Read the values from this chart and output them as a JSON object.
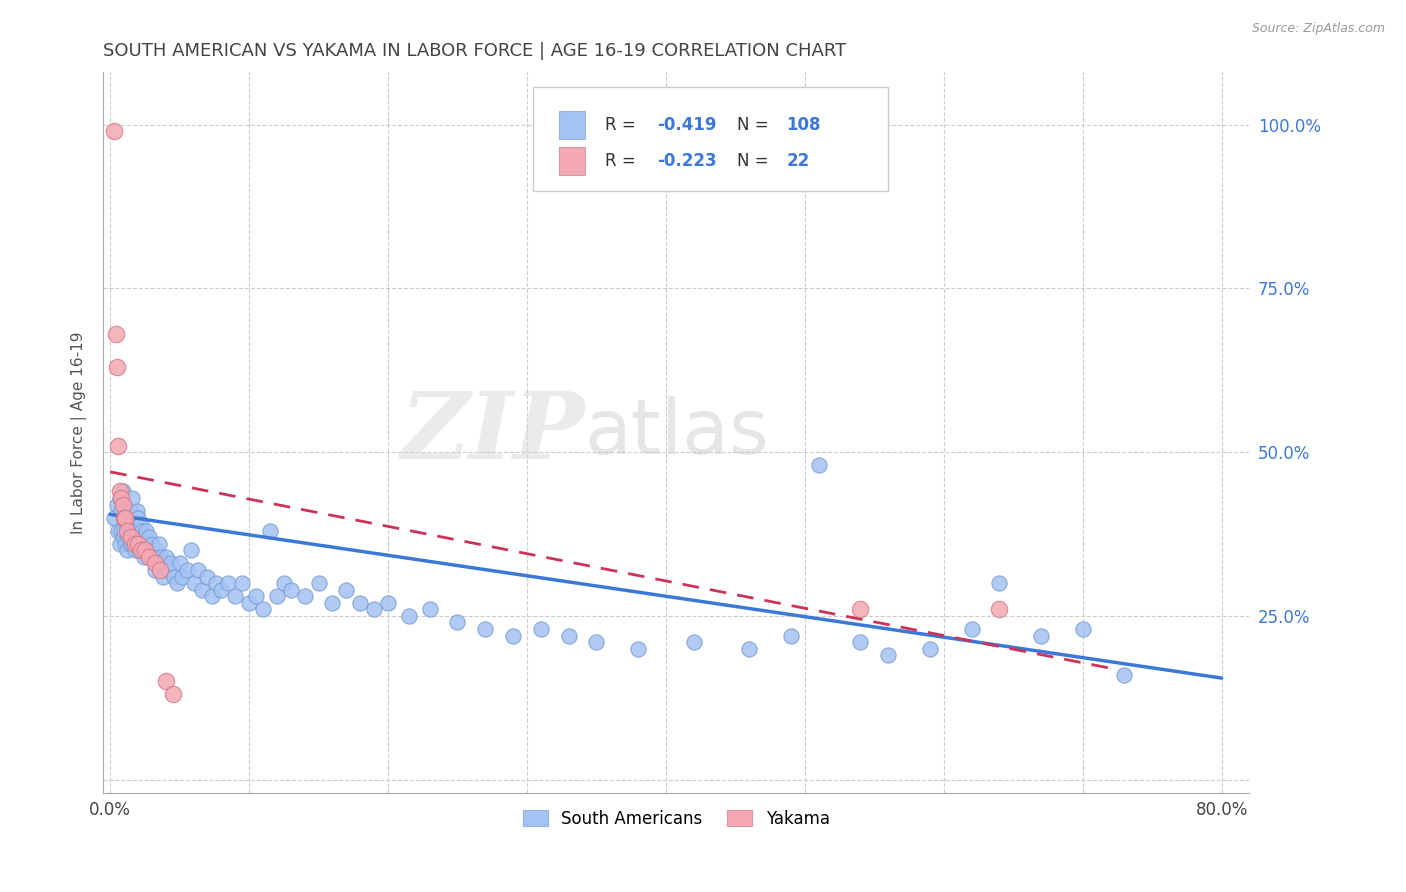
{
  "title": "SOUTH AMERICAN VS YAKAMA IN LABOR FORCE | AGE 16-19 CORRELATION CHART",
  "source": "Source: ZipAtlas.com",
  "ylabel": "In Labor Force | Age 16-19",
  "watermark_zip": "ZIP",
  "watermark_atlas": "atlas",
  "xlim": [
    -0.005,
    0.82
  ],
  "ylim": [
    -0.02,
    1.08
  ],
  "x_ticks": [
    0.0,
    0.1,
    0.2,
    0.3,
    0.4,
    0.5,
    0.6,
    0.7,
    0.8
  ],
  "x_tick_labels": [
    "0.0%",
    "",
    "",
    "",
    "",
    "",
    "",
    "",
    "80.0%"
  ],
  "y_ticks_right": [
    0.0,
    0.25,
    0.5,
    0.75,
    1.0
  ],
  "y_tick_labels_right": [
    "",
    "25.0%",
    "50.0%",
    "75.0%",
    "100.0%"
  ],
  "blue_color": "#a4c2f4",
  "pink_color": "#f4a8b2",
  "blue_line_color": "#3c78d8",
  "pink_line_color": "#cc3356",
  "blue_R": "-0.419",
  "blue_N": "108",
  "pink_R": "-0.223",
  "pink_N": "22",
  "legend_label_blue": "South Americans",
  "legend_label_pink": "Yakama",
  "background_color": "#ffffff",
  "grid_color": "#cccccc",
  "title_color": "#444444",
  "axis_label_color": "#555555",
  "right_tick_color": "#3c78d8",
  "legend_text_color": "#3c78d8",
  "blue_scatter_x": [
    0.003,
    0.005,
    0.006,
    0.007,
    0.007,
    0.008,
    0.008,
    0.009,
    0.009,
    0.01,
    0.01,
    0.011,
    0.011,
    0.012,
    0.012,
    0.012,
    0.013,
    0.013,
    0.014,
    0.014,
    0.015,
    0.015,
    0.016,
    0.016,
    0.017,
    0.017,
    0.018,
    0.018,
    0.019,
    0.019,
    0.02,
    0.02,
    0.021,
    0.021,
    0.022,
    0.022,
    0.023,
    0.023,
    0.024,
    0.024,
    0.025,
    0.026,
    0.027,
    0.028,
    0.029,
    0.03,
    0.031,
    0.032,
    0.033,
    0.034,
    0.035,
    0.036,
    0.037,
    0.038,
    0.04,
    0.042,
    0.044,
    0.046,
    0.048,
    0.05,
    0.052,
    0.055,
    0.058,
    0.06,
    0.063,
    0.066,
    0.07,
    0.073,
    0.076,
    0.08,
    0.085,
    0.09,
    0.095,
    0.1,
    0.105,
    0.11,
    0.115,
    0.12,
    0.125,
    0.13,
    0.14,
    0.15,
    0.16,
    0.17,
    0.18,
    0.19,
    0.2,
    0.215,
    0.23,
    0.25,
    0.27,
    0.29,
    0.31,
    0.33,
    0.35,
    0.38,
    0.42,
    0.46,
    0.49,
    0.51,
    0.54,
    0.56,
    0.59,
    0.62,
    0.64,
    0.67,
    0.7,
    0.73
  ],
  "blue_scatter_y": [
    0.4,
    0.42,
    0.38,
    0.43,
    0.36,
    0.41,
    0.38,
    0.44,
    0.37,
    0.4,
    0.38,
    0.42,
    0.36,
    0.41,
    0.39,
    0.35,
    0.4,
    0.37,
    0.39,
    0.36,
    0.41,
    0.38,
    0.43,
    0.36,
    0.4,
    0.37,
    0.39,
    0.35,
    0.41,
    0.38,
    0.36,
    0.4,
    0.38,
    0.35,
    0.39,
    0.36,
    0.38,
    0.35,
    0.37,
    0.34,
    0.36,
    0.38,
    0.35,
    0.37,
    0.34,
    0.36,
    0.34,
    0.32,
    0.35,
    0.33,
    0.36,
    0.34,
    0.33,
    0.31,
    0.34,
    0.32,
    0.33,
    0.31,
    0.3,
    0.33,
    0.31,
    0.32,
    0.35,
    0.3,
    0.32,
    0.29,
    0.31,
    0.28,
    0.3,
    0.29,
    0.3,
    0.28,
    0.3,
    0.27,
    0.28,
    0.26,
    0.38,
    0.28,
    0.3,
    0.29,
    0.28,
    0.3,
    0.27,
    0.29,
    0.27,
    0.26,
    0.27,
    0.25,
    0.26,
    0.24,
    0.23,
    0.22,
    0.23,
    0.22,
    0.21,
    0.2,
    0.21,
    0.2,
    0.22,
    0.48,
    0.21,
    0.19,
    0.2,
    0.23,
    0.3,
    0.22,
    0.23,
    0.16
  ],
  "pink_scatter_x": [
    0.003,
    0.004,
    0.005,
    0.006,
    0.007,
    0.008,
    0.009,
    0.01,
    0.011,
    0.012,
    0.015,
    0.018,
    0.02,
    0.022,
    0.025,
    0.028,
    0.032,
    0.036,
    0.04,
    0.045,
    0.54,
    0.64
  ],
  "pink_scatter_y": [
    0.99,
    0.68,
    0.63,
    0.51,
    0.44,
    0.43,
    0.42,
    0.4,
    0.4,
    0.38,
    0.37,
    0.36,
    0.36,
    0.35,
    0.35,
    0.34,
    0.33,
    0.32,
    0.15,
    0.13,
    0.26,
    0.26
  ],
  "blue_trend_x": [
    0.0,
    0.8
  ],
  "blue_trend_y": [
    0.405,
    0.155
  ],
  "pink_trend_x": [
    0.0,
    0.72
  ],
  "pink_trend_y": [
    0.47,
    0.17
  ]
}
